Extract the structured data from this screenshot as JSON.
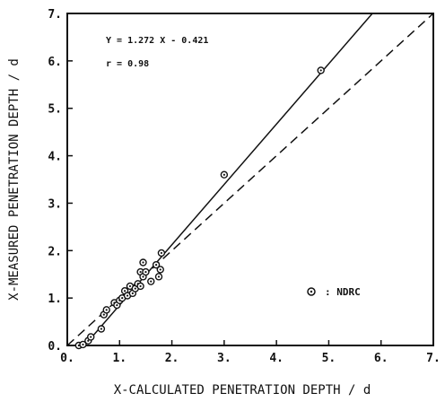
{
  "chart_data": {
    "type": "scatter",
    "title": "",
    "xlabel": "X-CALCULATED PENETRATION DEPTH / d",
    "ylabel": "X-MEASURED PENETRATION DEPTH / d",
    "xlim": [
      0,
      7
    ],
    "ylim": [
      0,
      7
    ],
    "x_ticks": [
      0,
      1,
      2,
      3,
      4,
      5,
      6,
      7
    ],
    "y_ticks": [
      0,
      1,
      2,
      3,
      4,
      5,
      6,
      7
    ],
    "x_tick_labels": [
      "0.",
      "1.",
      "2.",
      "3.",
      "4.",
      "5.",
      "6.",
      "7."
    ],
    "y_tick_labels": [
      "0.",
      "1.",
      "2.",
      "3.",
      "4.",
      "5.",
      "6.",
      "7."
    ],
    "grid": false,
    "legend_position": "bottom-right",
    "annotations": [
      "Y = 1.272 X - 0.421",
      "r = 0.98"
    ],
    "series": [
      {
        "name": ": NDRC",
        "marker": "circle-with-dot",
        "points": [
          {
            "x": 0.22,
            "y": 0.0
          },
          {
            "x": 0.3,
            "y": 0.02
          },
          {
            "x": 0.4,
            "y": 0.1
          },
          {
            "x": 0.45,
            "y": 0.18
          },
          {
            "x": 0.65,
            "y": 0.35
          },
          {
            "x": 0.7,
            "y": 0.65
          },
          {
            "x": 0.75,
            "y": 0.75
          },
          {
            "x": 0.9,
            "y": 0.9
          },
          {
            "x": 0.95,
            "y": 0.85
          },
          {
            "x": 1.0,
            "y": 0.95
          },
          {
            "x": 1.05,
            "y": 1.0
          },
          {
            "x": 1.1,
            "y": 1.15
          },
          {
            "x": 1.15,
            "y": 1.05
          },
          {
            "x": 1.2,
            "y": 1.25
          },
          {
            "x": 1.25,
            "y": 1.1
          },
          {
            "x": 1.3,
            "y": 1.2
          },
          {
            "x": 1.35,
            "y": 1.3
          },
          {
            "x": 1.4,
            "y": 1.55
          },
          {
            "x": 1.4,
            "y": 1.25
          },
          {
            "x": 1.45,
            "y": 1.45
          },
          {
            "x": 1.45,
            "y": 1.75
          },
          {
            "x": 1.5,
            "y": 1.55
          },
          {
            "x": 1.6,
            "y": 1.35
          },
          {
            "x": 1.7,
            "y": 1.7
          },
          {
            "x": 1.75,
            "y": 1.45
          },
          {
            "x": 1.78,
            "y": 1.6
          },
          {
            "x": 1.8,
            "y": 1.95
          },
          {
            "x": 3.0,
            "y": 3.6
          },
          {
            "x": 4.85,
            "y": 5.8
          }
        ]
      }
    ],
    "lines": [
      {
        "name": "regression",
        "style": "solid",
        "slope": 1.272,
        "intercept": -0.421
      },
      {
        "name": "identity",
        "style": "dashed",
        "slope": 1.0,
        "intercept": 0.0
      }
    ]
  }
}
